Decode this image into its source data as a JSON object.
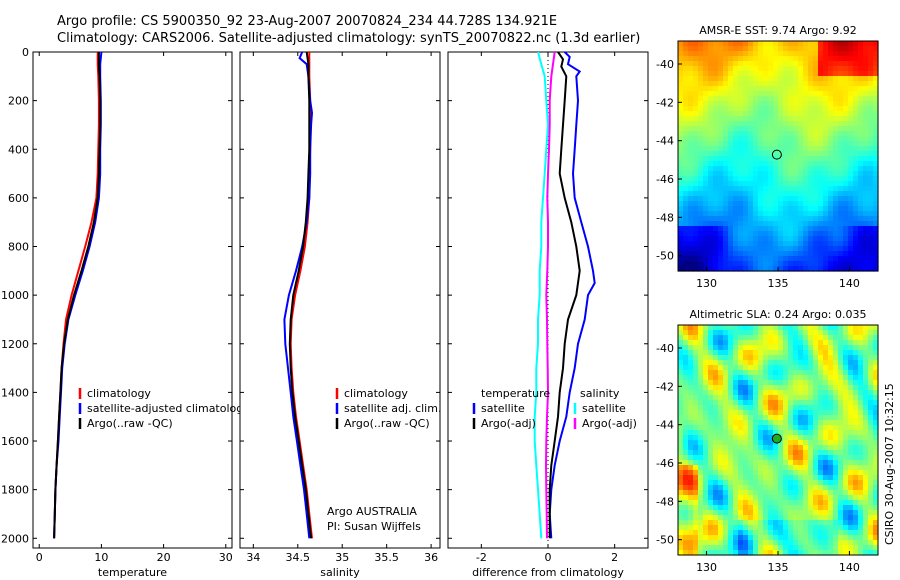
{
  "header": {
    "line1": "Argo profile: CS 5900350_92 23-Aug-2007 20070824_234 44.728S 134.921E",
    "line2": "Climatology: CARS2006. Satellite-adjusted climatology: synTS_20070822.nc (1.3d earlier)"
  },
  "side_text": "CSIRO 30-Aug-2007 10:32:15",
  "colors": {
    "climatology": "#ff0000",
    "satellite": "#0000ff",
    "argo": "#000000",
    "sat_salinity": "#00ffff",
    "argo_salinity_adj": "#ff00ff",
    "marker_fill": "#22aa22"
  },
  "chart_data": [
    {
      "type": "line",
      "xlabel": "temperature",
      "xlim": [
        -1,
        31
      ],
      "ylim": [
        0,
        2040
      ],
      "y_reversed": true,
      "xticks": [
        0,
        10,
        20,
        30
      ],
      "yticks": [
        0,
        200,
        400,
        600,
        800,
        1000,
        1200,
        1400,
        1600,
        1800,
        2000
      ],
      "legend": [
        "climatology",
        "satellite-adjusted climatology",
        "Argo(..raw -QC)"
      ],
      "series": [
        {
          "name": "climatology",
          "color_key": "climatology",
          "points": [
            [
              9.4,
              0
            ],
            [
              9.4,
              50
            ],
            [
              9.5,
              100
            ],
            [
              9.6,
              200
            ],
            [
              9.6,
              300
            ],
            [
              9.5,
              400
            ],
            [
              9.4,
              500
            ],
            [
              9.2,
              600
            ],
            [
              8.4,
              700
            ],
            [
              7.4,
              800
            ],
            [
              6.3,
              900
            ],
            [
              5.2,
              1000
            ],
            [
              4.3,
              1100
            ],
            [
              3.9,
              1200
            ],
            [
              3.6,
              1300
            ],
            [
              3.4,
              1400
            ],
            [
              3.2,
              1500
            ],
            [
              3.0,
              1600
            ],
            [
              2.8,
              1700
            ],
            [
              2.6,
              1800
            ],
            [
              2.5,
              1900
            ],
            [
              2.4,
              2000
            ]
          ]
        },
        {
          "name": "satellite-adjusted climatology",
          "color_key": "satellite",
          "points": [
            [
              10.0,
              0
            ],
            [
              9.8,
              50
            ],
            [
              9.8,
              100
            ],
            [
              9.9,
              200
            ],
            [
              9.9,
              300
            ],
            [
              9.8,
              400
            ],
            [
              9.8,
              500
            ],
            [
              9.6,
              600
            ],
            [
              9.0,
              700
            ],
            [
              8.1,
              800
            ],
            [
              7.0,
              900
            ],
            [
              5.8,
              1000
            ],
            [
              4.7,
              1100
            ],
            [
              4.1,
              1200
            ],
            [
              3.7,
              1300
            ],
            [
              3.5,
              1400
            ],
            [
              3.3,
              1500
            ],
            [
              3.1,
              1600
            ],
            [
              2.8,
              1700
            ],
            [
              2.6,
              1800
            ],
            [
              2.5,
              1900
            ],
            [
              2.4,
              2000
            ]
          ]
        },
        {
          "name": "Argo(..raw -QC)",
          "color_key": "argo",
          "points": [
            [
              9.6,
              0
            ],
            [
              9.6,
              50
            ],
            [
              9.7,
              100
            ],
            [
              9.8,
              200
            ],
            [
              9.8,
              300
            ],
            [
              9.7,
              400
            ],
            [
              9.6,
              500
            ],
            [
              9.4,
              600
            ],
            [
              8.8,
              700
            ],
            [
              7.9,
              800
            ],
            [
              6.8,
              900
            ],
            [
              5.6,
              1000
            ],
            [
              4.6,
              1100
            ],
            [
              4.0,
              1200
            ],
            [
              3.6,
              1300
            ],
            [
              3.4,
              1400
            ],
            [
              3.2,
              1500
            ],
            [
              3.0,
              1600
            ],
            [
              2.8,
              1700
            ],
            [
              2.6,
              1800
            ],
            [
              2.5,
              1900
            ],
            [
              2.4,
              2000
            ]
          ]
        }
      ]
    },
    {
      "type": "line",
      "xlabel": "salinity",
      "xlim": [
        33.85,
        36.1
      ],
      "ylim": [
        0,
        2040
      ],
      "y_reversed": true,
      "xticks": [
        34,
        34.5,
        35,
        35.5,
        36
      ],
      "legend": [
        "climatology",
        "satellite adj. clim.",
        "Argo(..raw -QC)"
      ],
      "annotation": [
        "Argo AUSTRALIA",
        "PI: Susan Wijffels"
      ],
      "series": [
        {
          "name": "climatology",
          "color_key": "climatology",
          "points": [
            [
              34.63,
              0
            ],
            [
              34.63,
              50
            ],
            [
              34.63,
              100
            ],
            [
              34.64,
              200
            ],
            [
              34.64,
              300
            ],
            [
              34.64,
              400
            ],
            [
              34.63,
              500
            ],
            [
              34.63,
              600
            ],
            [
              34.61,
              700
            ],
            [
              34.58,
              800
            ],
            [
              34.53,
              900
            ],
            [
              34.47,
              1000
            ],
            [
              34.43,
              1100
            ],
            [
              34.42,
              1200
            ],
            [
              34.43,
              1300
            ],
            [
              34.45,
              1400
            ],
            [
              34.48,
              1500
            ],
            [
              34.52,
              1600
            ],
            [
              34.56,
              1700
            ],
            [
              34.6,
              1800
            ],
            [
              34.63,
              1900
            ],
            [
              34.66,
              2000
            ]
          ]
        },
        {
          "name": "satellite adj. clim.",
          "color_key": "satellite",
          "points": [
            [
              34.55,
              0
            ],
            [
              34.52,
              25
            ],
            [
              34.6,
              50
            ],
            [
              34.62,
              100
            ],
            [
              34.64,
              200
            ],
            [
              34.66,
              250
            ],
            [
              34.65,
              300
            ],
            [
              34.64,
              400
            ],
            [
              34.64,
              500
            ],
            [
              34.63,
              600
            ],
            [
              34.6,
              700
            ],
            [
              34.55,
              800
            ],
            [
              34.48,
              900
            ],
            [
              34.4,
              1000
            ],
            [
              34.35,
              1100
            ],
            [
              34.36,
              1200
            ],
            [
              34.39,
              1300
            ],
            [
              34.42,
              1400
            ],
            [
              34.45,
              1500
            ],
            [
              34.49,
              1600
            ],
            [
              34.53,
              1700
            ],
            [
              34.57,
              1800
            ],
            [
              34.6,
              1900
            ],
            [
              34.63,
              2000
            ]
          ]
        },
        {
          "name": "Argo(..raw -QC)",
          "color_key": "argo",
          "points": [
            [
              34.6,
              0
            ],
            [
              34.62,
              50
            ],
            [
              34.62,
              100
            ],
            [
              34.63,
              200
            ],
            [
              34.63,
              300
            ],
            [
              34.63,
              400
            ],
            [
              34.62,
              500
            ],
            [
              34.61,
              600
            ],
            [
              34.59,
              700
            ],
            [
              34.56,
              800
            ],
            [
              34.51,
              900
            ],
            [
              34.45,
              1000
            ],
            [
              34.42,
              1100
            ],
            [
              34.41,
              1200
            ],
            [
              34.42,
              1300
            ],
            [
              34.44,
              1400
            ],
            [
              34.47,
              1500
            ],
            [
              34.51,
              1600
            ],
            [
              34.55,
              1700
            ],
            [
              34.59,
              1800
            ],
            [
              34.62,
              1900
            ],
            [
              34.65,
              2000
            ]
          ]
        }
      ]
    },
    {
      "type": "line",
      "xlabel": "difference from climatology",
      "xlim": [
        -3,
        3
      ],
      "ylim": [
        0,
        2040
      ],
      "y_reversed": true,
      "xticks": [
        -2,
        0,
        2
      ],
      "legend_left_title": "temperature",
      "legend_left": [
        "satellite",
        "Argo(-adj)"
      ],
      "legend_right_title": "salinity",
      "legend_right": [
        "satellite",
        "Argo(-adj)"
      ],
      "series": [
        {
          "name": "temperature satellite",
          "color_key": "satellite",
          "points": [
            [
              0.5,
              0
            ],
            [
              0.65,
              20
            ],
            [
              0.6,
              50
            ],
            [
              0.95,
              80
            ],
            [
              0.85,
              100
            ],
            [
              0.9,
              200
            ],
            [
              0.85,
              300
            ],
            [
              0.8,
              400
            ],
            [
              0.75,
              500
            ],
            [
              0.8,
              600
            ],
            [
              1.0,
              700
            ],
            [
              1.2,
              800
            ],
            [
              1.35,
              900
            ],
            [
              1.4,
              950
            ],
            [
              1.2,
              1000
            ],
            [
              1.1,
              1100
            ],
            [
              0.9,
              1200
            ],
            [
              0.8,
              1300
            ],
            [
              0.65,
              1400
            ],
            [
              0.55,
              1500
            ],
            [
              0.35,
              1600
            ],
            [
              0.2,
              1700
            ],
            [
              0.1,
              1800
            ],
            [
              0.05,
              1900
            ],
            [
              0.1,
              2000
            ]
          ]
        },
        {
          "name": "temperature Argo(-adj)",
          "color_key": "argo",
          "points": [
            [
              0.3,
              0
            ],
            [
              0.45,
              30
            ],
            [
              0.4,
              60
            ],
            [
              0.55,
              100
            ],
            [
              0.5,
              200
            ],
            [
              0.45,
              300
            ],
            [
              0.4,
              400
            ],
            [
              0.35,
              500
            ],
            [
              0.5,
              600
            ],
            [
              0.7,
              700
            ],
            [
              0.85,
              800
            ],
            [
              0.95,
              900
            ],
            [
              0.85,
              1000
            ],
            [
              0.6,
              1100
            ],
            [
              0.5,
              1200
            ],
            [
              0.45,
              1300
            ],
            [
              0.35,
              1400
            ],
            [
              0.3,
              1500
            ],
            [
              0.2,
              1600
            ],
            [
              0.1,
              1700
            ],
            [
              0.05,
              1800
            ],
            [
              0.05,
              1900
            ],
            [
              0.05,
              2000
            ]
          ]
        },
        {
          "name": "salinity satellite",
          "color_key": "sat_salinity",
          "points": [
            [
              -0.3,
              0
            ],
            [
              -0.2,
              50
            ],
            [
              -0.1,
              100
            ],
            [
              -0.05,
              200
            ],
            [
              0.0,
              300
            ],
            [
              -0.05,
              400
            ],
            [
              -0.1,
              500
            ],
            [
              -0.15,
              600
            ],
            [
              -0.2,
              700
            ],
            [
              -0.2,
              800
            ],
            [
              -0.25,
              900
            ],
            [
              -0.25,
              1000
            ],
            [
              -0.3,
              1100
            ],
            [
              -0.3,
              1200
            ],
            [
              -0.35,
              1300
            ],
            [
              -0.35,
              1400
            ],
            [
              -0.4,
              1500
            ],
            [
              -0.4,
              1600
            ],
            [
              -0.35,
              1700
            ],
            [
              -0.3,
              1800
            ],
            [
              -0.25,
              1900
            ],
            [
              -0.2,
              2000
            ]
          ]
        },
        {
          "name": "salinity Argo(-adj)",
          "color_key": "argo_salinity_adj",
          "points": [
            [
              0.2,
              0
            ],
            [
              0.15,
              50
            ],
            [
              0.1,
              100
            ],
            [
              0.05,
              200
            ],
            [
              0.05,
              300
            ],
            [
              0.03,
              400
            ],
            [
              0.0,
              500
            ],
            [
              -0.02,
              600
            ],
            [
              0.0,
              700
            ],
            [
              0.0,
              800
            ],
            [
              -0.02,
              900
            ],
            [
              -0.05,
              1000
            ],
            [
              -0.03,
              1100
            ],
            [
              -0.02,
              1200
            ],
            [
              -0.01,
              1300
            ],
            [
              0.0,
              1400
            ],
            [
              -0.03,
              1500
            ],
            [
              -0.05,
              1600
            ],
            [
              -0.06,
              1700
            ],
            [
              -0.05,
              1800
            ],
            [
              -0.04,
              1900
            ],
            [
              -0.03,
              2000
            ]
          ]
        }
      ]
    },
    {
      "type": "heatmap",
      "title": "AMSR-E SST: 9.74 Argo: 9.92",
      "xlim": [
        128,
        142
      ],
      "ylim": [
        -50.8,
        -38.8
      ],
      "xticks": [
        130,
        135,
        140
      ],
      "yticks": [
        -40,
        -42,
        -44,
        -46,
        -48,
        -50
      ],
      "colormap": "jet",
      "marker": [
        134.921,
        -44.728
      ]
    },
    {
      "type": "heatmap",
      "title": "Altimetric SLA: 0.24 Argo: 0.035",
      "xlim": [
        128,
        142
      ],
      "ylim": [
        -50.8,
        -38.8
      ],
      "xticks": [
        130,
        135,
        140
      ],
      "yticks": [
        -40,
        -42,
        -44,
        -46,
        -48,
        -50
      ],
      "colormap": "jet",
      "marker": [
        134.921,
        -44.728
      ]
    }
  ]
}
